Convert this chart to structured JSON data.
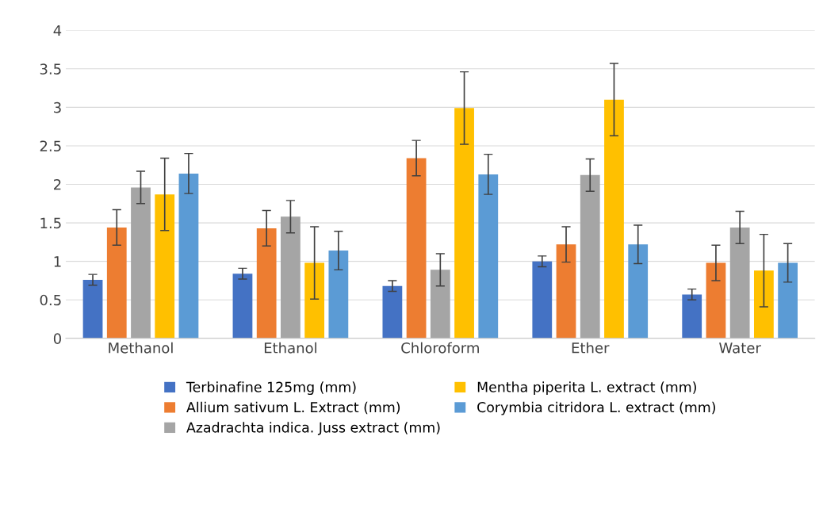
{
  "chart_data": {
    "type": "bar",
    "categories": [
      "Methanol",
      "Ethanol",
      "Chloroform",
      "Ether",
      "Water"
    ],
    "series": [
      {
        "name": "Terbinafine 125mg (mm)",
        "color": "#4472c4",
        "values": [
          0.76,
          0.84,
          0.68,
          1.0,
          0.57
        ],
        "errors": [
          0.07,
          0.07,
          0.07,
          0.07,
          0.07
        ]
      },
      {
        "name": "Allium sativum L. Extract (mm)",
        "color": "#ed7d31",
        "values": [
          1.44,
          1.43,
          2.34,
          1.22,
          0.98
        ],
        "errors": [
          0.23,
          0.23,
          0.23,
          0.23,
          0.23
        ]
      },
      {
        "name": "Azadrachta indica. Juss extract (mm)",
        "color": "#a5a5a5",
        "values": [
          1.96,
          1.58,
          0.89,
          2.12,
          1.44
        ],
        "errors": [
          0.21,
          0.21,
          0.21,
          0.21,
          0.21
        ]
      },
      {
        "name": "Mentha piperita L. extract (mm)",
        "color": "#ffc000",
        "values": [
          1.87,
          0.98,
          2.99,
          3.1,
          0.88
        ],
        "errors": [
          0.47,
          0.47,
          0.47,
          0.47,
          0.47
        ]
      },
      {
        "name": "Corymbia citridora L. extract (mm)",
        "color": "#5b9bd5",
        "values": [
          2.14,
          1.14,
          2.13,
          1.22,
          0.98
        ],
        "errors": [
          0.26,
          0.25,
          0.26,
          0.25,
          0.25
        ]
      }
    ],
    "ylim": [
      0,
      4
    ],
    "yticks": [
      0,
      {
        "value": 0.5,
        "label": "0.5"
      },
      1,
      {
        "value": 1.5,
        "label": "1.5"
      },
      2,
      {
        "value": 2.5,
        "label": "2.5"
      },
      3,
      {
        "value": 3.5,
        "label": "3.5"
      },
      4
    ],
    "grid": "y",
    "legend": "bottom"
  }
}
